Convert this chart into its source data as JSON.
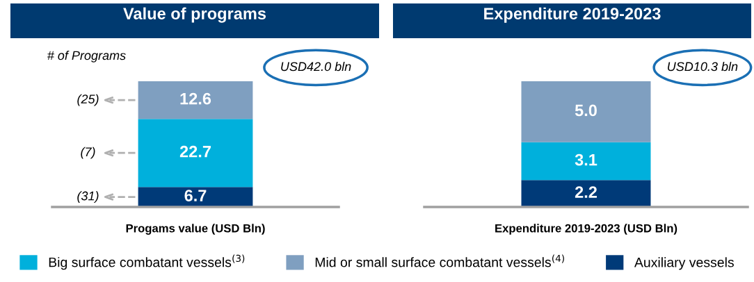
{
  "chart_data": [
    {
      "type": "bar",
      "title": "Value of programs",
      "xlabel": "Progams value (USD Bln)",
      "categories": [
        null
      ],
      "stacked": true,
      "data_labels": true,
      "legend": "bottom",
      "series": [
        {
          "name": "Auxiliary vessels",
          "color": "#003a78",
          "values": [
            6.7
          ]
        },
        {
          "name": "Big surface combatant vessels$^{(3)}$",
          "color": "#00b0dc",
          "values": [
            22.7
          ]
        },
        {
          "name": "Mid or small surface combatant vessels$^{(4)}$",
          "color": "#7f9fc0",
          "values": [
            12.6
          ]
        }
      ],
      "annotations": [
        "# of Programs",
        "(31)",
        "(7)",
        "(25)",
        "USD42.0 bln"
      ]
    },
    {
      "type": "bar",
      "title": "Expenditure 2019-2023",
      "xlabel": "Expenditure 2019-2023 (USD Bln)",
      "categories": [
        null
      ],
      "stacked": true,
      "data_labels": true,
      "legend": false,
      "series": [
        {
          "color": "#003a78",
          "values": [
            2.2
          ],
          "value_labels": [
            "2.2"
          ]
        },
        {
          "color": "#00b0dc",
          "values": [
            3.1
          ],
          "value_labels": [
            "3.1"
          ]
        },
        {
          "color": "#7f9fc0",
          "values": [
            5.0
          ],
          "value_labels": [
            "5.0"
          ]
        }
      ],
      "annotations": [
        "USD10.3 bln"
      ]
    }
  ]
}
